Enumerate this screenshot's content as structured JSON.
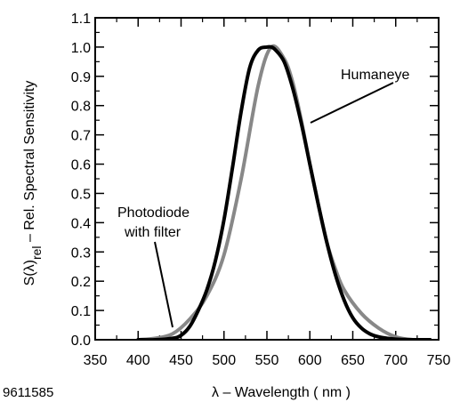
{
  "chart_data": {
    "type": "line",
    "xlabel": "λ – Wavelength ( nm )",
    "ylabel_parts": {
      "s": "S",
      "lambda": "(λ)",
      "rel": "rel",
      "rest": " – Rel. Spectral Sensitivity"
    },
    "figure_id": "9611585",
    "xlim": [
      350,
      750
    ],
    "ylim": [
      0.0,
      1.1
    ],
    "x_ticks": [
      "350",
      "400",
      "450",
      "500",
      "550",
      "600",
      "650",
      "700",
      "750"
    ],
    "y_ticks": [
      "0.0",
      "0.1",
      "0.2",
      "0.3",
      "0.4",
      "0.5",
      "0.6",
      "0.7",
      "0.8",
      "0.9",
      "1.0",
      "1.1"
    ],
    "grid": false,
    "series": [
      {
        "name": "Photodiode with filter",
        "color": "#888888",
        "x": [
          400,
          420,
          440,
          460,
          480,
          500,
          520,
          540,
          555,
          570,
          580,
          590,
          600,
          610,
          620,
          630,
          640,
          660,
          680,
          700,
          720,
          740
        ],
        "y": [
          0.0,
          0.005,
          0.02,
          0.07,
          0.15,
          0.29,
          0.55,
          0.87,
          1.0,
          0.96,
          0.88,
          0.75,
          0.6,
          0.46,
          0.33,
          0.24,
          0.17,
          0.09,
          0.04,
          0.01,
          0.0,
          0.0
        ]
      },
      {
        "name": "Humaneye",
        "color": "#000000",
        "x": [
          400,
          420,
          440,
          450,
          460,
          470,
          480,
          490,
          500,
          510,
          520,
          530,
          540,
          550,
          555,
          560,
          570,
          580,
          590,
          600,
          610,
          620,
          630,
          640,
          650,
          660,
          670,
          680,
          690,
          700,
          720,
          740
        ],
        "y": [
          0.0,
          0.0,
          0.005,
          0.015,
          0.045,
          0.1,
          0.17,
          0.27,
          0.41,
          0.59,
          0.78,
          0.93,
          0.99,
          1.0,
          1.0,
          0.99,
          0.95,
          0.86,
          0.74,
          0.6,
          0.46,
          0.33,
          0.22,
          0.135,
          0.075,
          0.04,
          0.02,
          0.01,
          0.005,
          0.002,
          0.0,
          0.0
        ]
      }
    ],
    "annotations": [
      {
        "lines": [
          "Humaneye"
        ],
        "x": 560,
        "y": 0.97
      },
      {
        "lines": [
          "Photodiode",
          "with filter"
        ],
        "x": 410,
        "y": 0.49
      }
    ]
  }
}
